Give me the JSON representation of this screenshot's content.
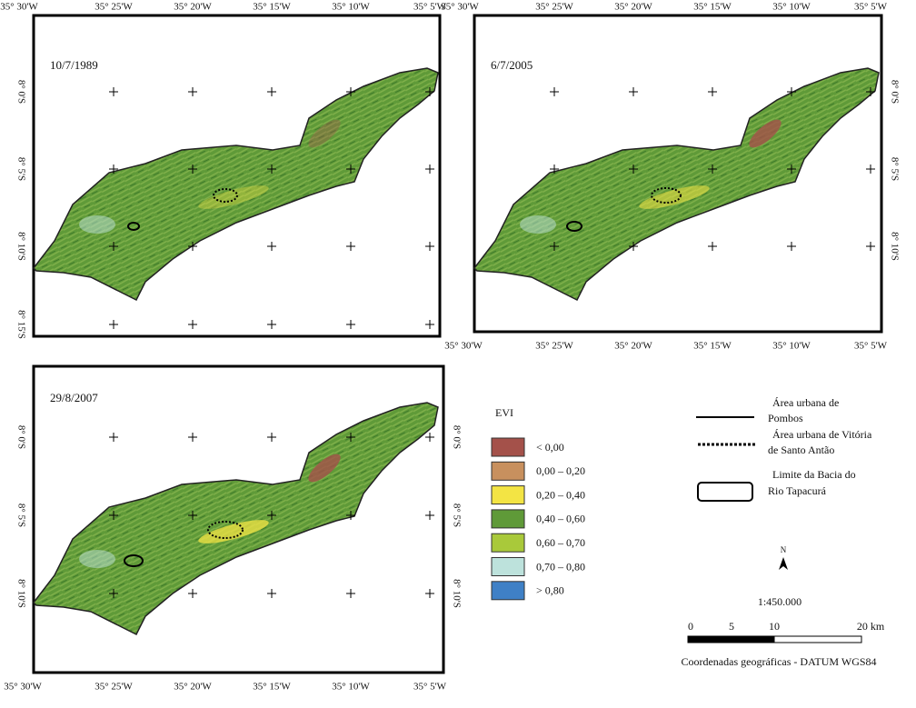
{
  "panels": [
    {
      "date": "10/7/1989",
      "top_labels": [
        "35° 30'W",
        "35° 25'W",
        "35° 20'W",
        "35° 15'W",
        "35° 10'W",
        "35° 5'W"
      ],
      "bottom_labels": [],
      "left_labels": [
        "8° 0'S",
        "8° 5'S",
        "8° 10'S",
        "8° 15'S"
      ],
      "right_labels": []
    },
    {
      "date": "6/7/2005",
      "top_labels": [
        "35° 30'W",
        "35° 25'W",
        "35° 20'W",
        "35° 15'W",
        "35° 10'W",
        "35° 5'W"
      ],
      "bottom_labels": [
        "35° 30'W",
        "35° 25'W",
        "35° 20'W",
        "35° 15'W",
        "35° 10'W",
        "35° 5'W"
      ],
      "left_labels": [],
      "right_labels": [
        "8° 0'S",
        "8° 5'S",
        "8° 10'S"
      ]
    },
    {
      "date": "29/8/2007",
      "top_labels": [],
      "bottom_labels": [
        "35° 30'W",
        "35° 25'W",
        "35° 20'W",
        "35° 15'W",
        "35° 10'W",
        "35° 5'W"
      ],
      "left_labels": [
        "8° 0'S",
        "8° 5'S",
        "8° 10'S"
      ],
      "right_labels": [
        "8° 0'S",
        "8° 5'S",
        "8° 10'S"
      ]
    }
  ],
  "evi_legend": {
    "title": "EVI",
    "items": [
      {
        "label": "< 0,00",
        "color": "#a4514a"
      },
      {
        "label": "0,00 – 0,20",
        "color": "#c8905e"
      },
      {
        "label": "0,20 – 0,40",
        "color": "#f3e444"
      },
      {
        "label": "0,40 – 0,60",
        "color": "#5f9a38"
      },
      {
        "label": "0,60 – 0,70",
        "color": "#a9c93a"
      },
      {
        "label": "0,70 – 0,80",
        "color": "#bde2dc"
      },
      {
        "label": "> 0,80",
        "color": "#3f80c6"
      }
    ]
  },
  "line_legend": [
    {
      "lines": [
        "Área  urbana de",
        "Pombos"
      ]
    },
    {
      "lines": [
        "Área urbana de Vitória",
        "de Santo Antão"
      ]
    },
    {
      "lines": [
        "Limite da Bacia do",
        "Rio Tapacurá"
      ]
    }
  ],
  "north": "N",
  "scale": {
    "ratio": "1:450.000",
    "ticks": [
      "0",
      "5",
      "10",
      "20 km"
    ]
  },
  "datum": "Coordenadas geográficas - DATUM WGS84"
}
